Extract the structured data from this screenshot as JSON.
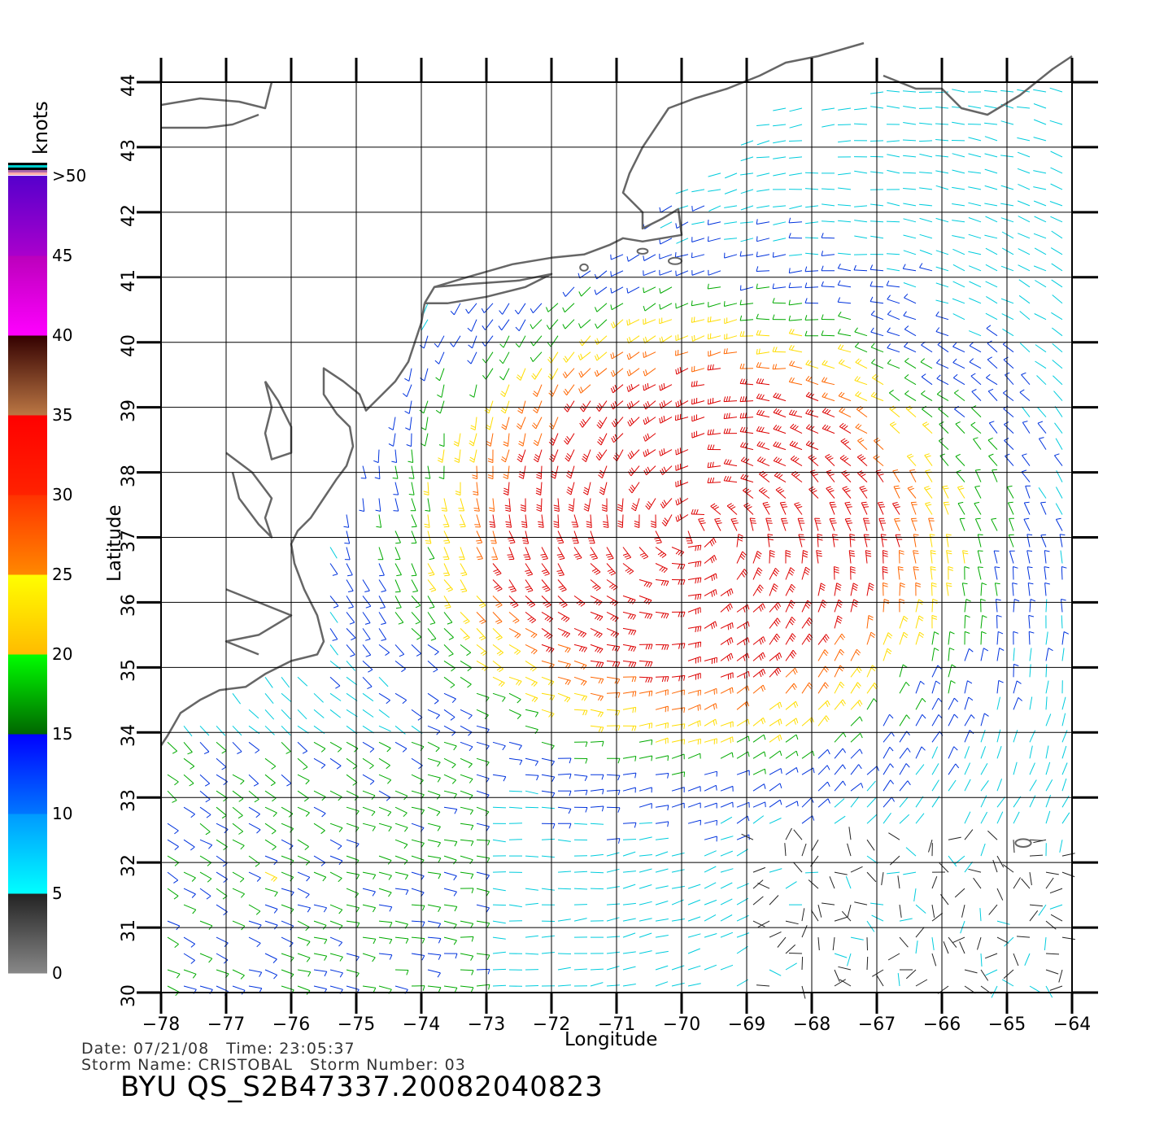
{
  "map": {
    "lon_ticks": [
      -78,
      -77,
      -76,
      -75,
      -74,
      -73,
      -72,
      -71,
      -70,
      -69,
      -68,
      -67,
      -66,
      -65,
      -64
    ],
    "lat_ticks": [
      30,
      31,
      32,
      33,
      34,
      35,
      36,
      37,
      38,
      39,
      40,
      41,
      42,
      43,
      44
    ],
    "lon_range": [
      -78,
      -64
    ],
    "lat_range": [
      30,
      44
    ],
    "xlabel": "Longitude",
    "ylabel": "Latitude",
    "grid": true,
    "storm_center": {
      "lon": -69.8,
      "lat": 37.1
    }
  },
  "legend": {
    "unit": "knots",
    "ticks": [
      "0",
      "5",
      "10",
      "15",
      "20",
      "25",
      "30",
      "35",
      "40",
      "45",
      ">50"
    ],
    "bands": [
      {
        "from": 0,
        "to": 5,
        "top": "#222222",
        "bottom": "#888888"
      },
      {
        "from": 5,
        "to": 10,
        "top": "#0099ff",
        "bottom": "#00ffff"
      },
      {
        "from": 10,
        "to": 15,
        "top": "#0000ff",
        "bottom": "#0077ff"
      },
      {
        "from": 15,
        "to": 20,
        "top": "#00ff00",
        "bottom": "#006600"
      },
      {
        "from": 20,
        "to": 25,
        "top": "#ffff00",
        "bottom": "#ffbb00"
      },
      {
        "from": 25,
        "to": 30,
        "top": "#ff3300",
        "bottom": "#ff8800"
      },
      {
        "from": 30,
        "to": 35,
        "top": "#ff0000",
        "bottom": "#ff2200"
      },
      {
        "from": 35,
        "to": 40,
        "top": "#330000",
        "bottom": "#bb7744"
      },
      {
        "from": 40,
        "to": 45,
        "top": "#bb00bb",
        "bottom": "#ff00ff"
      },
      {
        "from": 45,
        "to": 50,
        "top": "#5500cc",
        "bottom": "#aa00cc"
      }
    ]
  },
  "info": {
    "date_line": "Date: 07/21/08   Time: 23:05:37",
    "storm_line": "Storm Name: CRISTOBAL   Storm Number: 03",
    "product": "BYU QS_S2B47337.20082040823"
  },
  "colors": {
    "coast": "#666666",
    "calm": "#222222",
    "light": "#00ccdd",
    "moderate": "#0033dd",
    "fresh": "#00aa00",
    "strong": "#ffdd00",
    "gale": "#ff6600",
    "storm": "#dd0000"
  }
}
